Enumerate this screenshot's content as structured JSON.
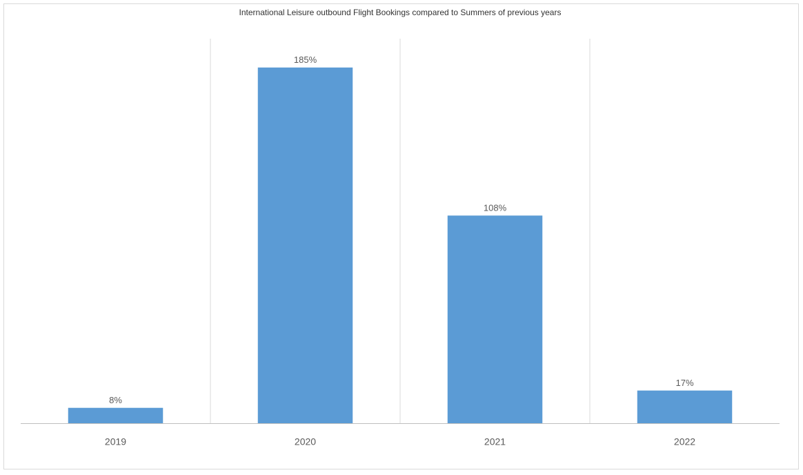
{
  "chart_data": {
    "type": "bar",
    "title": "International Leisure outbound Flight Bookings compared  to Summers of previous years",
    "categories": [
      "2019",
      "2020",
      "2021",
      "2022"
    ],
    "values": [
      8,
      185,
      108,
      17
    ],
    "value_labels": [
      "8%",
      "185%",
      "108%",
      "17%"
    ],
    "color": "#5b9bd5",
    "ylim": [
      0,
      200
    ]
  }
}
